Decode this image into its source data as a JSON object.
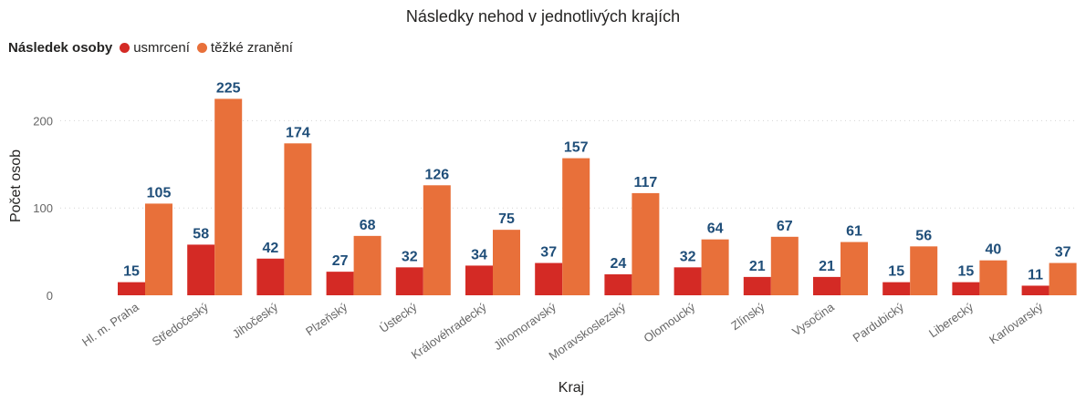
{
  "chart_data": {
    "type": "bar",
    "title": "Následky nehod v jednotlivých krajích",
    "legend_title": "Následek osoby",
    "legend_position": "top-left",
    "xlabel": "Kraj",
    "ylabel": "Počet osob",
    "ylim": [
      0,
      240
    ],
    "yticks": [
      0,
      100,
      200
    ],
    "grid": true,
    "categories": [
      "Hl. m. Praha",
      "Středočeský",
      "Jihočeský",
      "Plzeňský",
      "Ústecký",
      "Královéhradecký",
      "Jihomoravský",
      "Moravskoslezský",
      "Olomoucký",
      "Zlínský",
      "Vysočina",
      "Pardubický",
      "Liberecký",
      "Karlovarský"
    ],
    "series": [
      {
        "name": "usmrcení",
        "color": "#d42a25",
        "values": [
          15,
          58,
          42,
          27,
          32,
          34,
          37,
          24,
          32,
          21,
          21,
          15,
          15,
          11
        ]
      },
      {
        "name": "těžké zranění",
        "color": "#e8703a",
        "values": [
          105,
          225,
          174,
          68,
          126,
          75,
          157,
          117,
          64,
          67,
          61,
          56,
          40,
          37
        ]
      }
    ]
  }
}
